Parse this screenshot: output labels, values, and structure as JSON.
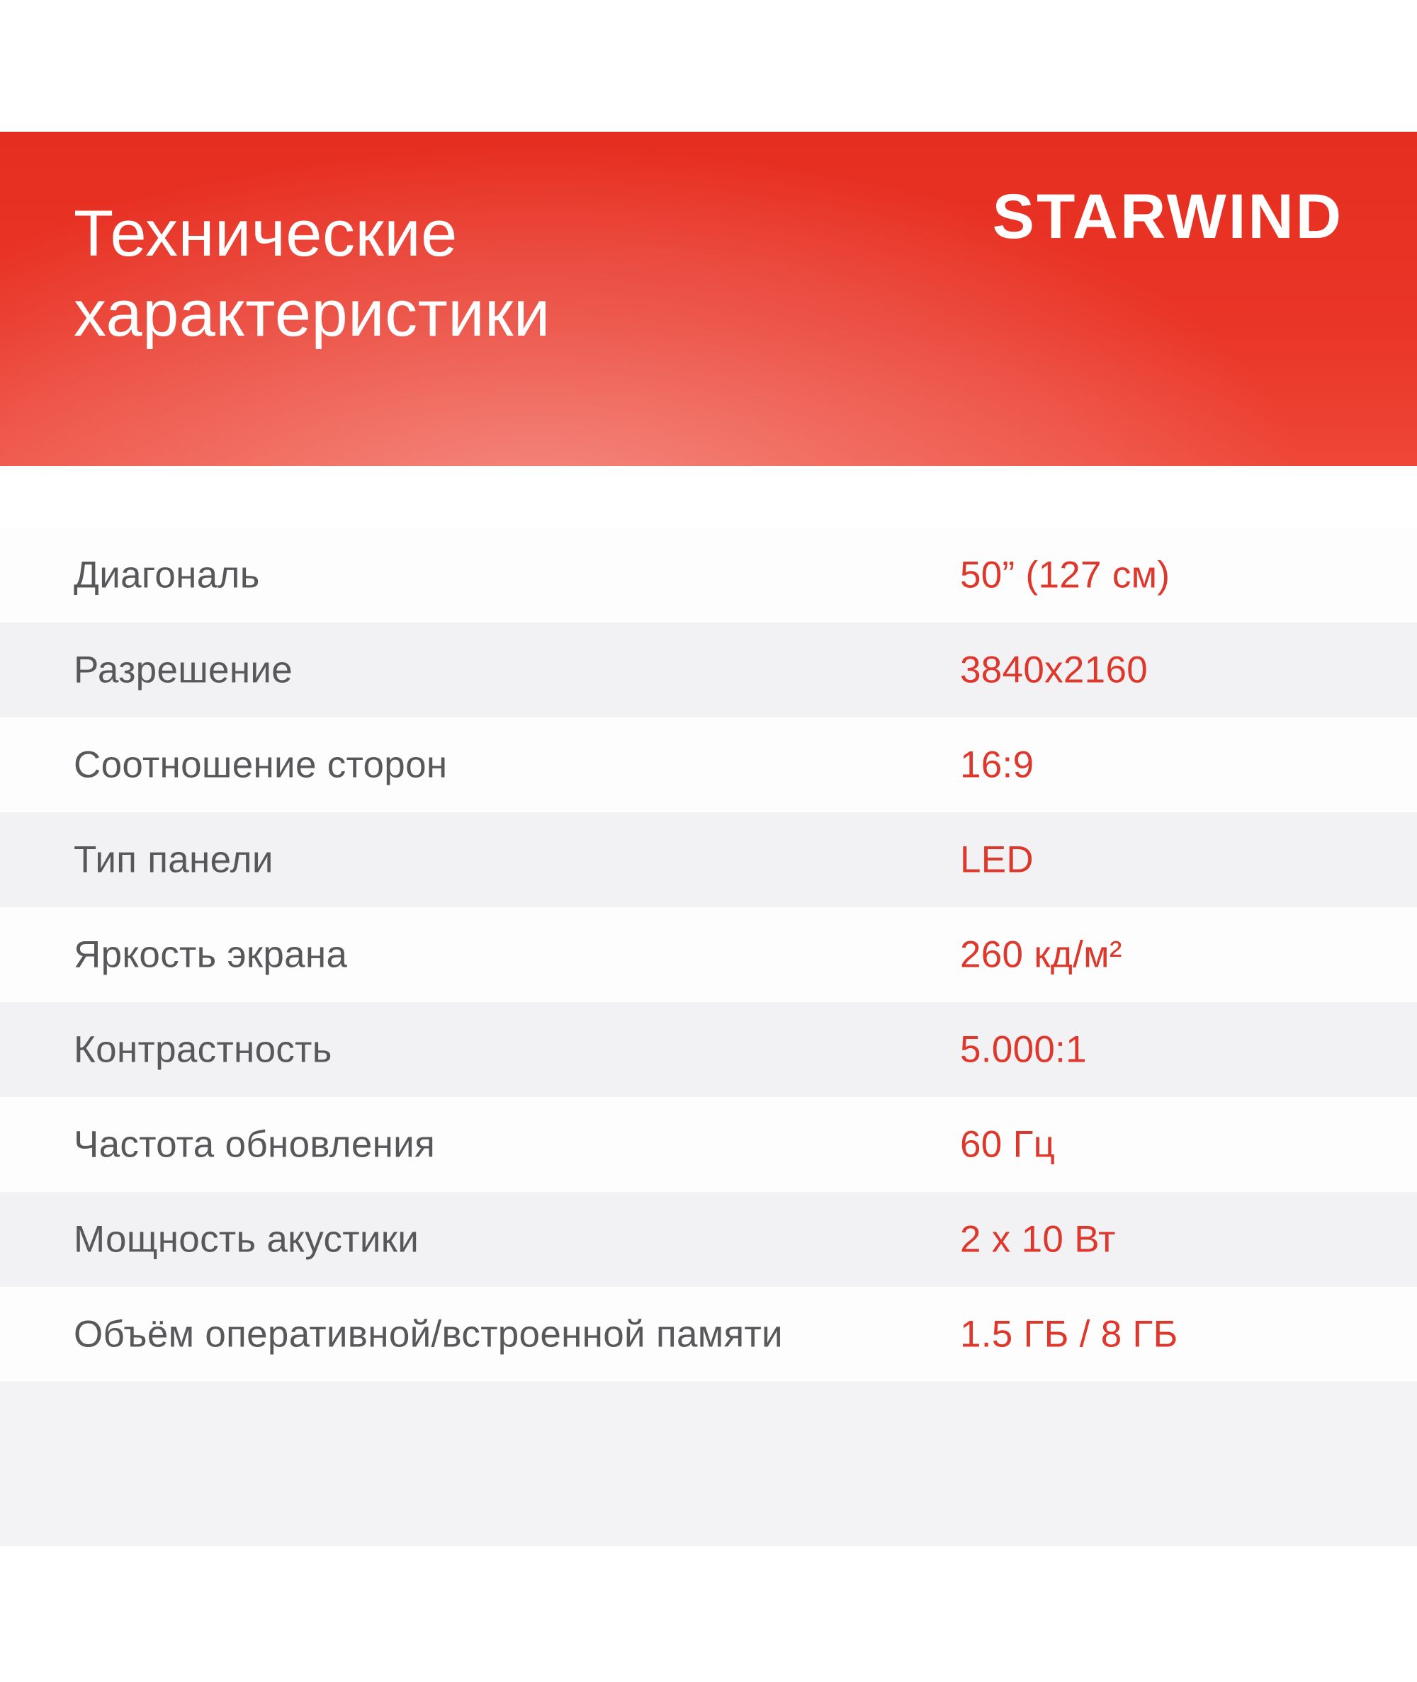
{
  "page": {
    "background_color": "#ffffff"
  },
  "header": {
    "title": "Технические характеристики",
    "brand": "STARWIND",
    "background_color": "#e93527",
    "glow_color": "#f56e60",
    "text_color": "#ffffff"
  },
  "specs": {
    "label_color": "#58585a",
    "value_color": "#de382c",
    "alt_row_color": "#f2f2f4",
    "footer_band_color": "#f3f3f5",
    "rows": [
      {
        "label": "Диагональ",
        "value": "50” (127 см)"
      },
      {
        "label": "Разрешение",
        "value": "3840x2160"
      },
      {
        "label": "Соотношение сторон",
        "value": "16:9"
      },
      {
        "label": "Тип панели",
        "value": "LED"
      },
      {
        "label": "Яркость экрана",
        "value": "260 кд/м²"
      },
      {
        "label": "Контрастность",
        "value": "5.000:1"
      },
      {
        "label": "Частота обновления",
        "value": "60 Гц"
      },
      {
        "label": "Мощность акустики",
        "value": "2 x 10 Вт"
      },
      {
        "label": "Объём оперативной/встроенной памяти",
        "value": "1.5 ГБ / 8 ГБ"
      }
    ]
  }
}
